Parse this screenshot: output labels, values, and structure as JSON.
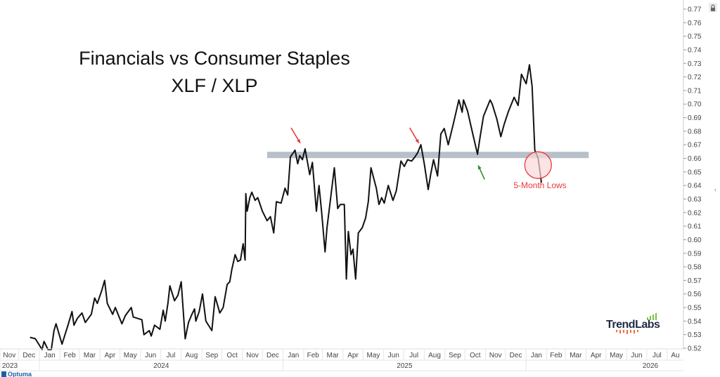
{
  "chart_data": {
    "type": "line",
    "title": "Financials vs Consumer Staples",
    "subtitle": "XLF / XLP",
    "ylim": [
      0.52,
      0.77
    ],
    "y_ticks": [
      "0.77",
      "0.76",
      "0.75",
      "0.74",
      "0.73",
      "0.72",
      "0.71",
      "0.70",
      "0.69",
      "0.68",
      "0.67",
      "0.66",
      "0.65",
      "0.64",
      "0.63",
      "0.62",
      "0.61",
      "0.60",
      "0.59",
      "0.58",
      "0.57",
      "0.56",
      "0.55",
      "0.54",
      "0.53",
      "0.52"
    ],
    "y_axis_position": "right",
    "x_range": [
      "2023-11-01",
      "2026-08-15"
    ],
    "month_labels": [
      {
        "label": "Nov",
        "date": "2023-11-01"
      },
      {
        "label": "Dec",
        "date": "2023-12-01"
      },
      {
        "label": "Jan",
        "date": "2024-01-01"
      },
      {
        "label": "Feb",
        "date": "2024-02-01"
      },
      {
        "label": "Mar",
        "date": "2024-03-01"
      },
      {
        "label": "Apr",
        "date": "2024-04-01"
      },
      {
        "label": "May",
        "date": "2024-05-01"
      },
      {
        "label": "Jun",
        "date": "2024-06-01"
      },
      {
        "label": "Jul",
        "date": "2024-07-01"
      },
      {
        "label": "Aug",
        "date": "2024-08-01"
      },
      {
        "label": "Sep",
        "date": "2024-09-01"
      },
      {
        "label": "Oct",
        "date": "2024-10-01"
      },
      {
        "label": "Nov",
        "date": "2024-11-01"
      },
      {
        "label": "Dec",
        "date": "2024-12-01"
      },
      {
        "label": "Jan",
        "date": "2025-01-01"
      },
      {
        "label": "Feb",
        "date": "2025-02-01"
      },
      {
        "label": "Mar",
        "date": "2025-03-01"
      },
      {
        "label": "Apr",
        "date": "2025-04-01"
      },
      {
        "label": "May",
        "date": "2025-05-01"
      },
      {
        "label": "Jun",
        "date": "2025-06-01"
      },
      {
        "label": "Jul",
        "date": "2025-07-01"
      },
      {
        "label": "Aug",
        "date": "2025-08-01"
      },
      {
        "label": "Sep",
        "date": "2025-09-01"
      },
      {
        "label": "Oct",
        "date": "2025-10-01"
      },
      {
        "label": "Nov",
        "date": "2025-11-01"
      },
      {
        "label": "Dec",
        "date": "2025-12-01"
      },
      {
        "label": "Jan",
        "date": "2026-01-01"
      },
      {
        "label": "Feb",
        "date": "2026-02-01"
      },
      {
        "label": "Mar",
        "date": "2026-03-01"
      },
      {
        "label": "Apr",
        "date": "2026-04-01"
      },
      {
        "label": "May",
        "date": "2026-05-01"
      },
      {
        "label": "Jun",
        "date": "2026-06-01"
      },
      {
        "label": "Jul",
        "date": "2026-07-01"
      },
      {
        "label": "Au",
        "date": "2026-08-01"
      }
    ],
    "year_labels": [
      {
        "label": "2023",
        "start": "2023-11-01",
        "end": "2024-01-01"
      },
      {
        "label": "2024",
        "start": "2024-01-01",
        "end": "2025-01-01"
      },
      {
        "label": "2025",
        "start": "2025-01-01",
        "end": "2026-01-01"
      },
      {
        "label": "2026",
        "start": "2026-01-01",
        "end": "2026-08-15"
      }
    ],
    "series": [
      {
        "color": "#111111",
        "points": [
          [
            "2023-12-18",
            0.528
          ],
          [
            "2023-12-26",
            0.527
          ],
          [
            "2024-01-05",
            0.519
          ],
          [
            "2024-01-08",
            0.525
          ],
          [
            "2024-01-14",
            0.519
          ],
          [
            "2024-01-19",
            0.519
          ],
          [
            "2024-01-23",
            0.533
          ],
          [
            "2024-01-26",
            0.538
          ],
          [
            "2024-02-04",
            0.523
          ],
          [
            "2024-02-13",
            0.537
          ],
          [
            "2024-02-19",
            0.547
          ],
          [
            "2024-02-22",
            0.537
          ],
          [
            "2024-02-27",
            0.542
          ],
          [
            "2024-03-05",
            0.546
          ],
          [
            "2024-03-10",
            0.539
          ],
          [
            "2024-03-19",
            0.545
          ],
          [
            "2024-03-24",
            0.557
          ],
          [
            "2024-03-28",
            0.553
          ],
          [
            "2024-04-04",
            0.563
          ],
          [
            "2024-04-08",
            0.57
          ],
          [
            "2024-04-12",
            0.553
          ],
          [
            "2024-04-20",
            0.545
          ],
          [
            "2024-04-24",
            0.55
          ],
          [
            "2024-05-04",
            0.538
          ],
          [
            "2024-05-09",
            0.544
          ],
          [
            "2024-05-18",
            0.55
          ],
          [
            "2024-05-21",
            0.543
          ],
          [
            "2024-06-03",
            0.541
          ],
          [
            "2024-06-06",
            0.53
          ],
          [
            "2024-06-14",
            0.533
          ],
          [
            "2024-06-17",
            0.529
          ],
          [
            "2024-06-22",
            0.537
          ],
          [
            "2024-06-30",
            0.534
          ],
          [
            "2024-07-05",
            0.548
          ],
          [
            "2024-07-08",
            0.54
          ],
          [
            "2024-07-12",
            0.553
          ],
          [
            "2024-07-15",
            0.566
          ],
          [
            "2024-07-22",
            0.555
          ],
          [
            "2024-07-27",
            0.559
          ],
          [
            "2024-08-01",
            0.569
          ],
          [
            "2024-08-07",
            0.527
          ],
          [
            "2024-08-12",
            0.539
          ],
          [
            "2024-08-17",
            0.545
          ],
          [
            "2024-08-21",
            0.549
          ],
          [
            "2024-08-23",
            0.54
          ],
          [
            "2024-08-28",
            0.547
          ],
          [
            "2024-09-02",
            0.56
          ],
          [
            "2024-09-07",
            0.54
          ],
          [
            "2024-09-16",
            0.533
          ],
          [
            "2024-09-21",
            0.558
          ],
          [
            "2024-09-28",
            0.546
          ],
          [
            "2024-10-03",
            0.55
          ],
          [
            "2024-10-09",
            0.567
          ],
          [
            "2024-10-13",
            0.569
          ],
          [
            "2024-10-16",
            0.578
          ],
          [
            "2024-10-21",
            0.589
          ],
          [
            "2024-10-25",
            0.584
          ],
          [
            "2024-10-29",
            0.585
          ],
          [
            "2024-11-02",
            0.597
          ],
          [
            "2024-11-05",
            0.585
          ],
          [
            "2024-11-06",
            0.634
          ],
          [
            "2024-11-08",
            0.621
          ],
          [
            "2024-11-12",
            0.631
          ],
          [
            "2024-11-15",
            0.635
          ],
          [
            "2024-11-20",
            0.629
          ],
          [
            "2024-11-24",
            0.631
          ],
          [
            "2024-12-01",
            0.621
          ],
          [
            "2024-12-08",
            0.614
          ],
          [
            "2024-12-13",
            0.617
          ],
          [
            "2024-12-18",
            0.605
          ],
          [
            "2024-12-22",
            0.628
          ],
          [
            "2024-12-29",
            0.627
          ],
          [
            "2025-01-04",
            0.638
          ],
          [
            "2025-01-08",
            0.633
          ],
          [
            "2025-01-12",
            0.661
          ],
          [
            "2025-01-19",
            0.666
          ],
          [
            "2025-01-23",
            0.656
          ],
          [
            "2025-01-26",
            0.662
          ],
          [
            "2025-01-30",
            0.659
          ],
          [
            "2025-02-03",
            0.667
          ],
          [
            "2025-02-10",
            0.648
          ],
          [
            "2025-02-14",
            0.657
          ],
          [
            "2025-02-20",
            0.621
          ],
          [
            "2025-02-24",
            0.64
          ],
          [
            "2025-02-28",
            0.62
          ],
          [
            "2025-03-05",
            0.591
          ],
          [
            "2025-03-08",
            0.609
          ],
          [
            "2025-03-15",
            0.637
          ],
          [
            "2025-03-19",
            0.653
          ],
          [
            "2025-03-24",
            0.623
          ],
          [
            "2025-03-28",
            0.626
          ],
          [
            "2025-04-03",
            0.626
          ],
          [
            "2025-04-06",
            0.571
          ],
          [
            "2025-04-09",
            0.606
          ],
          [
            "2025-04-13",
            0.589
          ],
          [
            "2025-04-16",
            0.593
          ],
          [
            "2025-04-20",
            0.571
          ],
          [
            "2025-04-24",
            0.605
          ],
          [
            "2025-04-30",
            0.609
          ],
          [
            "2025-05-05",
            0.616
          ],
          [
            "2025-05-09",
            0.628
          ],
          [
            "2025-05-13",
            0.653
          ],
          [
            "2025-05-21",
            0.638
          ],
          [
            "2025-05-25",
            0.626
          ],
          [
            "2025-05-29",
            0.631
          ],
          [
            "2025-06-02",
            0.627
          ],
          [
            "2025-06-08",
            0.64
          ],
          [
            "2025-06-15",
            0.629
          ],
          [
            "2025-06-20",
            0.636
          ],
          [
            "2025-06-27",
            0.658
          ],
          [
            "2025-07-02",
            0.654
          ],
          [
            "2025-07-07",
            0.659
          ],
          [
            "2025-07-13",
            0.658
          ],
          [
            "2025-07-18",
            0.661
          ],
          [
            "2025-07-22",
            0.664
          ],
          [
            "2025-07-27",
            0.67
          ],
          [
            "2025-08-01",
            0.656
          ],
          [
            "2025-08-07",
            0.637
          ],
          [
            "2025-08-11",
            0.649
          ],
          [
            "2025-08-15",
            0.659
          ],
          [
            "2025-08-21",
            0.647
          ],
          [
            "2025-08-26",
            0.678
          ],
          [
            "2025-08-31",
            0.682
          ],
          [
            "2025-09-06",
            0.67
          ],
          [
            "2025-09-14",
            0.686
          ],
          [
            "2025-09-22",
            0.703
          ],
          [
            "2025-09-27",
            0.694
          ],
          [
            "2025-09-29",
            0.703
          ],
          [
            "2025-10-05",
            0.695
          ],
          [
            "2025-10-12",
            0.68
          ],
          [
            "2025-10-20",
            0.663
          ],
          [
            "2025-10-24",
            0.676
          ],
          [
            "2025-10-29",
            0.691
          ],
          [
            "2025-11-08",
            0.703
          ],
          [
            "2025-11-11",
            0.7
          ],
          [
            "2025-11-18",
            0.689
          ],
          [
            "2025-11-24",
            0.676
          ],
          [
            "2025-11-29",
            0.685
          ],
          [
            "2025-12-05",
            0.694
          ],
          [
            "2025-12-14",
            0.705
          ],
          [
            "2025-12-20",
            0.699
          ],
          [
            "2025-12-25",
            0.722
          ],
          [
            "2026-01-01",
            0.715
          ],
          [
            "2026-01-06",
            0.729
          ],
          [
            "2026-01-10",
            0.713
          ],
          [
            "2026-01-14",
            0.666
          ],
          [
            "2026-01-19",
            0.66
          ],
          [
            "2026-01-22",
            0.65
          ],
          [
            "2026-01-24",
            0.642
          ]
        ]
      }
    ],
    "annotations": {
      "resistance_band": {
        "level": 0.6625,
        "from": "2024-12-08",
        "to": "2026-04-05",
        "color": "#b8c0c9"
      },
      "red_arrows": [
        {
          "date": "2025-01-30",
          "value": 0.667,
          "color": "#e8393b"
        },
        {
          "date": "2025-07-27",
          "value": 0.667,
          "color": "#e8393b"
        }
      ],
      "green_arrow": {
        "date": "2025-10-20",
        "value": 0.66,
        "color": "#2e8b2e"
      },
      "highlight_circle": {
        "date": "2026-01-19",
        "value": 0.655,
        "color": "#e8393b",
        "fill": "#fbd9d9"
      },
      "label": "5-Month Lows"
    },
    "grid": false
  },
  "branding": {
    "logo_text": "TrendLabs",
    "logo_color": "#1f2a44",
    "accent_green": "#7dc242",
    "accent_orange": "#f26b3a",
    "footer_logo": "Optuma"
  },
  "ui": {
    "lock_icon": "lock-icon",
    "collapse_icon": "chevron-left-icon"
  }
}
